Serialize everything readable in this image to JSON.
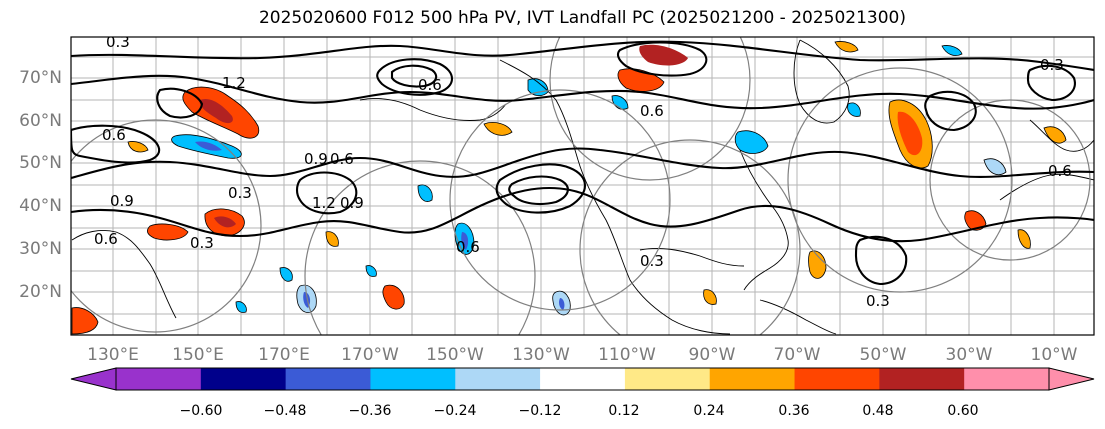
{
  "title": "2025020600 F012 500 hPa PV, IVT Landfall PC (2025021200 - 2025021300)",
  "lat_labels": [
    "70°N",
    "60°N",
    "50°N",
    "40°N",
    "30°N",
    "20°N"
  ],
  "lon_labels": [
    "130°E",
    "150°E",
    "170°E",
    "170°W",
    "150°W",
    "130°W",
    "110°W",
    "90°W",
    "70°W",
    "50°W",
    "30°W",
    "10°W"
  ],
  "colorbar": {
    "ticks": [
      "−0.60",
      "−0.48",
      "−0.36",
      "−0.24",
      "−0.12",
      "0.12",
      "0.24",
      "0.36",
      "0.48",
      "0.60"
    ],
    "colors": [
      "#9932cc",
      "#00008b",
      "#3b5bd6",
      "#00bfff",
      "#add8f6",
      "#ffffff",
      "#ffe987",
      "#ffa500",
      "#ff4500",
      "#b22222",
      "#ff8fab"
    ]
  },
  "contour_labels": [
    "0.3",
    "1.2",
    "0.6",
    "0.6",
    "0.6",
    "0.3",
    "0.6",
    "0.9",
    "0.9",
    "0.3",
    "1.2",
    "0.9",
    "0.3",
    "0.6",
    "0.3",
    "0.3",
    "0.6",
    "0.6"
  ]
}
